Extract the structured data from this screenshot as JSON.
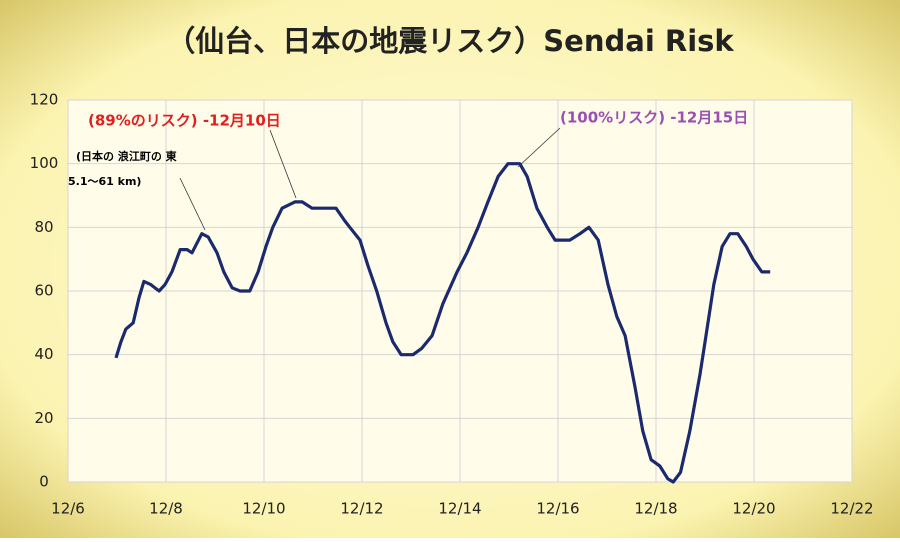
{
  "chart_data": {
    "type": "line",
    "title": "（仙台、日本の地震リスク）Sendai Risk",
    "x": [
      6.98,
      7.08,
      7.18,
      7.33,
      7.45,
      7.55,
      7.69,
      7.86,
      7.98,
      8.12,
      8.29,
      8.43,
      8.53,
      8.73,
      8.86,
      9.04,
      9.18,
      9.35,
      9.51,
      9.71,
      9.88,
      10.04,
      10.18,
      10.37,
      10.63,
      10.78,
      10.98,
      11.18,
      11.47,
      11.65,
      11.75,
      11.96,
      12.12,
      12.3,
      12.49,
      12.63,
      12.8,
      13.04,
      13.22,
      13.43,
      13.65,
      13.94,
      14.14,
      14.37,
      14.57,
      14.78,
      14.98,
      15.22,
      15.37,
      15.57,
      15.78,
      15.94,
      16.24,
      16.45,
      16.63,
      16.82,
      17.02,
      17.2,
      17.37,
      17.57,
      17.73,
      17.9,
      18.08,
      18.24,
      18.35,
      18.5,
      18.69,
      18.9,
      19.02,
      19.18,
      19.35,
      19.51,
      19.67,
      19.84,
      19.98,
      20.16,
      20.33
    ],
    "values": [
      39,
      44,
      48,
      50,
      58,
      63,
      62,
      60,
      62,
      66,
      73,
      73,
      72,
      78,
      77,
      72,
      66,
      61,
      60,
      60,
      66,
      74,
      80,
      86,
      88,
      88,
      86,
      86,
      86,
      82,
      80,
      76,
      68,
      60,
      50,
      44,
      40,
      40,
      42,
      46,
      56,
      66,
      72,
      80,
      88,
      96,
      100,
      100,
      96,
      86,
      80,
      76,
      76,
      78,
      80,
      76,
      62,
      52,
      46,
      30,
      16,
      7,
      5,
      1,
      0,
      3,
      16,
      34,
      46,
      62,
      74,
      78,
      78,
      74,
      70,
      66,
      66
    ],
    "color": "#1b2a6e",
    "xlim": [
      6,
      22
    ],
    "xticks": [
      {
        "value": 6,
        "label": "12/6"
      },
      {
        "value": 8,
        "label": "12/8"
      },
      {
        "value": 10,
        "label": "12/10"
      },
      {
        "value": 12,
        "label": "12/12"
      },
      {
        "value": 14,
        "label": "12/14"
      },
      {
        "value": 16,
        "label": "12/16"
      },
      {
        "value": 18,
        "label": "12/18"
      },
      {
        "value": 20,
        "label": "12/20"
      },
      {
        "value": 22,
        "label": "12/22"
      }
    ],
    "ylim": [
      0,
      120
    ],
    "yticks": [
      0,
      20,
      40,
      60,
      80,
      100,
      120
    ],
    "grid": true,
    "annotations": [
      {
        "text": "(89%のリスク)  -12月10日",
        "color": "#e02020"
      },
      {
        "text": "(日本の 浪江町の 東",
        "color": "#000000"
      },
      {
        "text": "5.1～61 km)",
        "color": "#000000"
      },
      {
        "text": "(100%リスク)  -12月15日",
        "color": "#9b4fb0"
      }
    ]
  }
}
